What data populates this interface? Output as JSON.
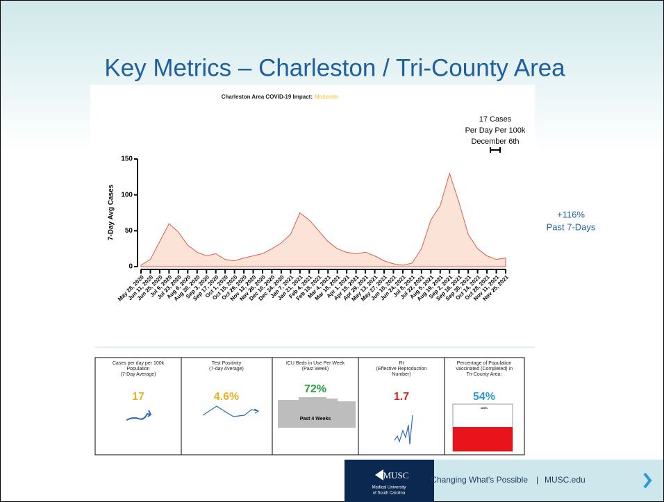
{
  "slide": {
    "title": "Key Metrics – Charleston / Tri-County Area"
  },
  "chart_data": {
    "type": "area",
    "title": "Charleston Area COVID-19 Impact:",
    "subtitle": "Moderate",
    "y_label": "7-Day Avg Cases",
    "annotation": [
      "17 Cases",
      "Per Day Per 100k",
      "December 6th"
    ],
    "side_note": [
      "+116%",
      "Past 7-Days"
    ],
    "color": "#e05a4a",
    "categories": [
      "May 28, 2020",
      "Jun 11, 2020",
      "Jun 25, 2020",
      "Jul 9, 2020",
      "Jul 23, 2020",
      "Aug 6, 2020",
      "Aug 20, 2020",
      "Sep 3, 2020",
      "Sep 17, 2020",
      "Oct 1, 2020",
      "Oct 15, 2020",
      "Oct 29, 2020",
      "Nov 12, 2020",
      "Nov 26, 2020",
      "Dec 10, 2020",
      "Dec 24, 2020",
      "Jan 7, 2021",
      "Jan 21, 2021",
      "Feb 4, 2021",
      "Feb 18, 2021",
      "Mar 4, 2021",
      "Mar 18, 2021",
      "Apr 1, 2021",
      "Apr 15, 2021",
      "Apr 29, 2021",
      "May 13, 2021",
      "May 27, 2021",
      "Jun 10, 2021",
      "Jun 24, 2021",
      "Jul 8, 2021",
      "Jul 22, 2021",
      "Aug 5, 2021",
      "Aug 19, 2021",
      "Sep 2, 2021",
      "Sep 16, 2021",
      "Sep 30, 2021",
      "Oct 14, 2021",
      "Oct 28, 2021",
      "Nov 11, 2021",
      "Nov 25, 2021"
    ],
    "values": [
      2,
      10,
      35,
      60,
      48,
      30,
      20,
      15,
      18,
      10,
      8,
      12,
      15,
      18,
      25,
      33,
      45,
      75,
      65,
      50,
      35,
      25,
      20,
      18,
      20,
      15,
      8,
      4,
      2,
      5,
      25,
      65,
      85,
      130,
      90,
      45,
      25,
      15,
      10,
      12
    ],
    "ylim": [
      0,
      150
    ],
    "yticks": [
      0,
      50,
      100,
      150
    ]
  },
  "metrics": [
    {
      "label": [
        "Cases per day per 100k",
        "Population",
        "(7-Day Average)"
      ],
      "value": "17",
      "color": "#f0b020"
    },
    {
      "label": [
        "Test Positivity",
        "(7-day Average)"
      ],
      "value": "4.6%",
      "color": "#f0b020"
    },
    {
      "label": [
        "ICU Beds in Use Per Week",
        "(Past Week)"
      ],
      "value": "72%",
      "color": "#2aa040",
      "note": "Past 4 Weeks"
    },
    {
      "label": [
        "Rt",
        "(Effective Reproduction",
        "Number)"
      ],
      "value": "1.7",
      "color": "#e02020"
    },
    {
      "label": [
        "Percentage of Population",
        "Vaccinated (Completed) in",
        "Tri-County Area:"
      ],
      "value": "54%",
      "color": "#2a9ad8",
      "note": "100%"
    }
  ],
  "footer": {
    "logo": "MUSC",
    "institution": [
      "Medical University",
      "of South Carolina"
    ],
    "tagline": "Changing What's Possible",
    "site": "MUSC.edu"
  }
}
